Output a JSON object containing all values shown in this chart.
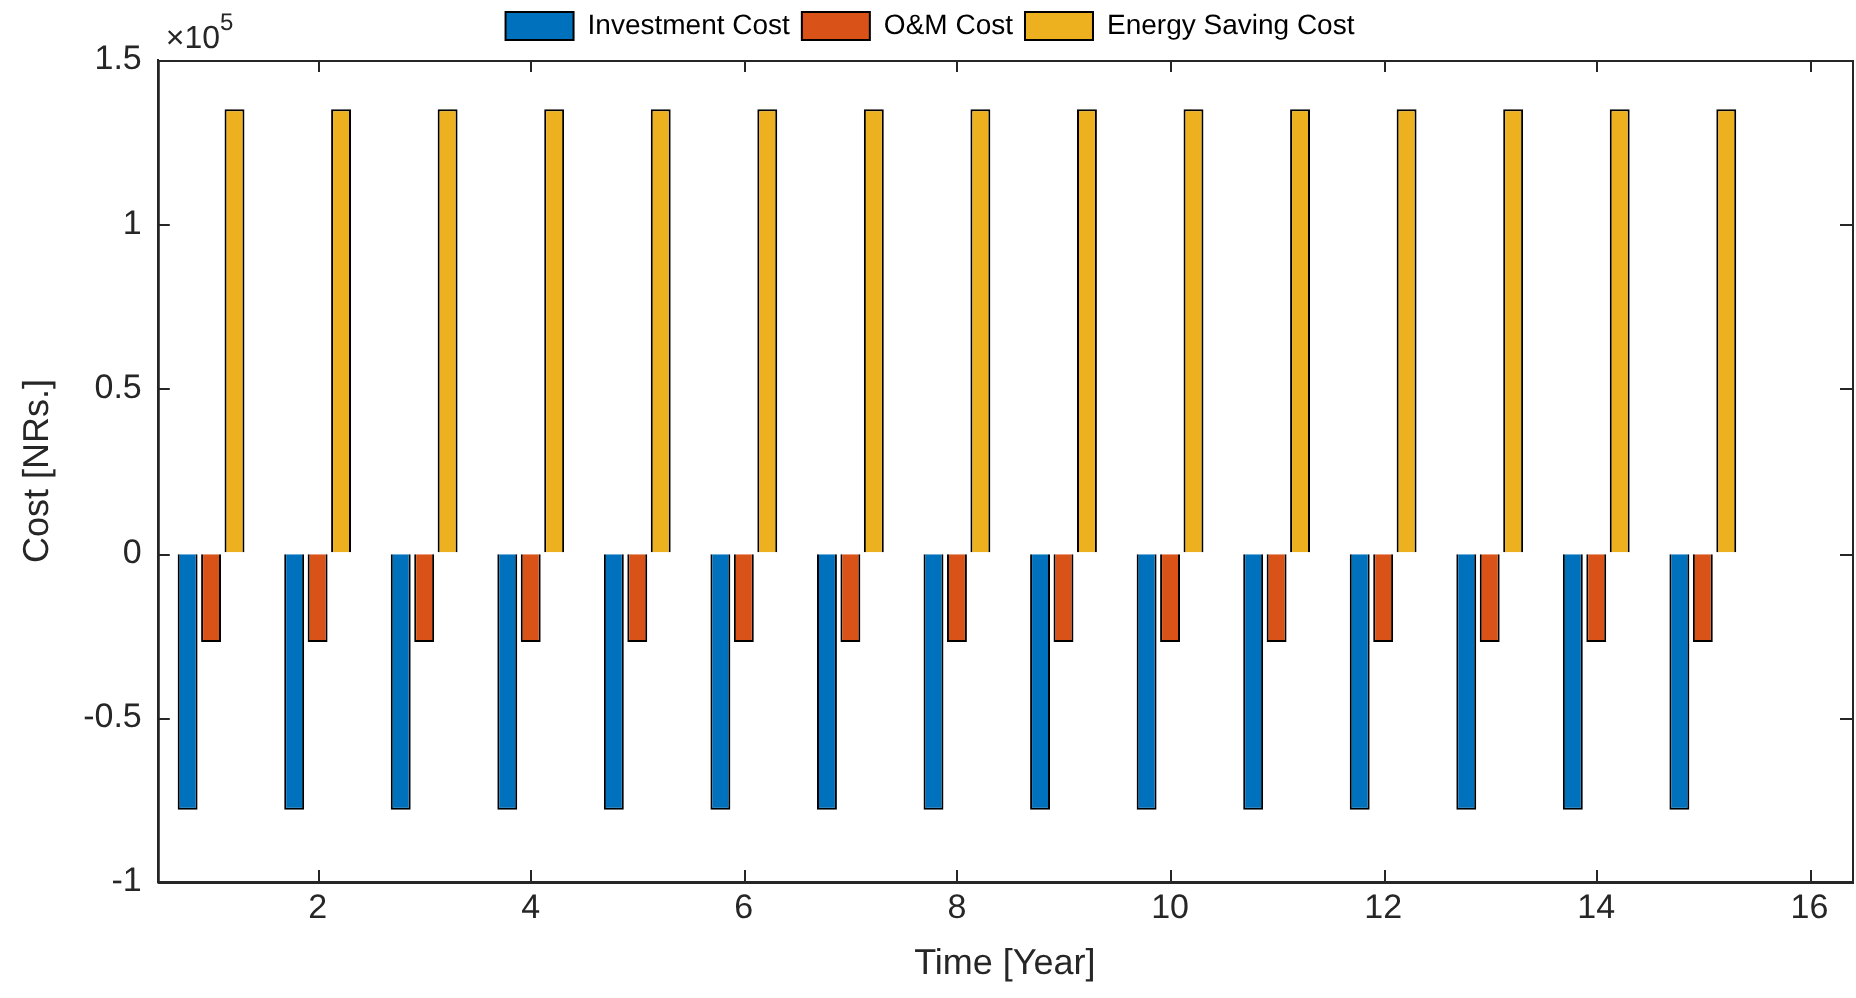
{
  "chart_data": {
    "type": "bar",
    "xlabel": "Time [Year]",
    "ylabel": "Cost [NRs.]",
    "annotations": [
      "×10$^{5}$"
    ],
    "x": [
      1,
      2,
      3,
      4,
      5,
      6,
      7,
      8,
      9,
      10,
      11,
      12,
      13,
      14,
      15,
      16
    ],
    "xlim": [
      0.5,
      16.4
    ],
    "xticks": [
      2,
      4,
      6,
      8,
      10,
      12,
      14,
      16
    ],
    "ylim": [
      -1,
      1.5
    ],
    "yticks": [
      -1,
      -0.5,
      0,
      0.5,
      1,
      1.5
    ],
    "series": [
      {
        "name": "Investment Cost",
        "color": "#0072bd",
        "values": [
          -0.78,
          -0.78,
          -0.78,
          -0.78,
          -0.78,
          -0.78,
          -0.78,
          -0.78,
          -0.78,
          -0.78,
          -0.78,
          -0.78,
          -0.78,
          -0.78,
          -0.78,
          0
        ]
      },
      {
        "name": "O&M Cost",
        "color": "#d95319",
        "values": [
          -0.27,
          -0.27,
          -0.27,
          -0.27,
          -0.27,
          -0.27,
          -0.27,
          -0.27,
          -0.27,
          -0.27,
          -0.27,
          -0.27,
          -0.27,
          -0.27,
          -0.27,
          0
        ]
      },
      {
        "name": "Energy Saving Cost",
        "color": "#edb120",
        "values": [
          1.35,
          1.35,
          1.35,
          1.35,
          1.35,
          1.35,
          1.35,
          1.35,
          1.35,
          1.35,
          1.35,
          1.35,
          1.35,
          1.35,
          1.35,
          0
        ]
      }
    ],
    "legend": "top",
    "grid": false
  }
}
